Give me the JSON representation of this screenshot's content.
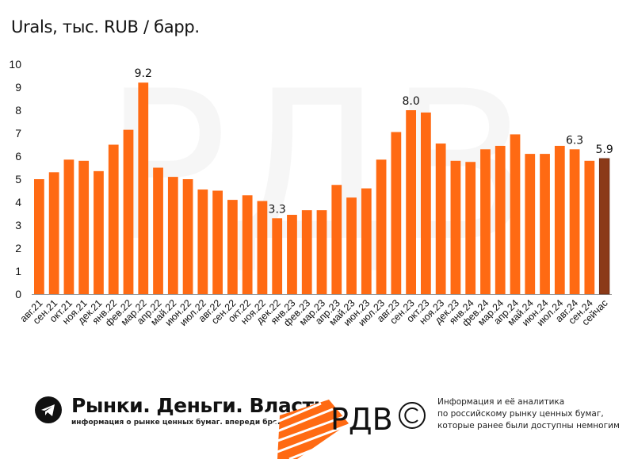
{
  "chart_data": {
    "type": "bar",
    "title": "Urals, тыс. RUB / барр.",
    "xlabel": "",
    "ylabel": "",
    "ylim": [
      0,
      10
    ],
    "yticks": [
      "0",
      "1",
      "2",
      "3",
      "4",
      "5",
      "6",
      "7",
      "8",
      "9",
      "10"
    ],
    "categories": [
      "авг.21",
      "сен.21",
      "окт.21",
      "ноя.21",
      "дек.21",
      "янв.22",
      "фев.22",
      "мар.22",
      "апр.22",
      "май.22",
      "июн.22",
      "июл.22",
      "авг.22",
      "сен.22",
      "окт.22",
      "ноя.22",
      "дек.22",
      "янв.23",
      "фев.23",
      "мар.23",
      "апр.23",
      "май.23",
      "июн.23",
      "июл.23",
      "авг.23",
      "сен.23",
      "окт.23",
      "ноя.23",
      "дек.23",
      "янв.24",
      "фев.24",
      "мар.24",
      "апр.24",
      "май.24",
      "июн.24",
      "июл.24",
      "авг.24",
      "сен.24",
      "сейчас"
    ],
    "values": [
      5.0,
      5.3,
      5.85,
      5.8,
      5.35,
      6.5,
      7.15,
      9.2,
      5.5,
      5.1,
      5.0,
      4.55,
      4.5,
      4.1,
      4.3,
      4.05,
      3.3,
      3.45,
      3.65,
      3.65,
      4.75,
      4.2,
      4.6,
      5.85,
      7.05,
      8.0,
      7.9,
      6.55,
      5.8,
      5.75,
      6.3,
      6.45,
      6.95,
      6.1,
      6.1,
      6.45,
      6.3,
      5.8,
      5.9
    ],
    "data_labels": [
      {
        "index": 7,
        "text": "9.2"
      },
      {
        "index": 16,
        "text": "3.3"
      },
      {
        "index": 25,
        "text": "8.0"
      },
      {
        "index": 36,
        "text": "6.3"
      },
      {
        "index": 38,
        "text": "5.9"
      }
    ],
    "colors": {
      "bar": "#FF6A13",
      "highlight": "#8B3A18",
      "axis": "#999999"
    }
  },
  "footer": {
    "brand_title": "Рынки. Деньги. Власть.",
    "brand_subtitle": "информация о рынке ценных бумаг. впереди брокеров и банков.",
    "logo_text": "РДВ",
    "info_lines": [
      "Информация и её аналитика",
      "по российскому рынку ценных бумаг,",
      "которые ранее были доступны немногим"
    ],
    "telegram_icon": "telegram-icon"
  }
}
